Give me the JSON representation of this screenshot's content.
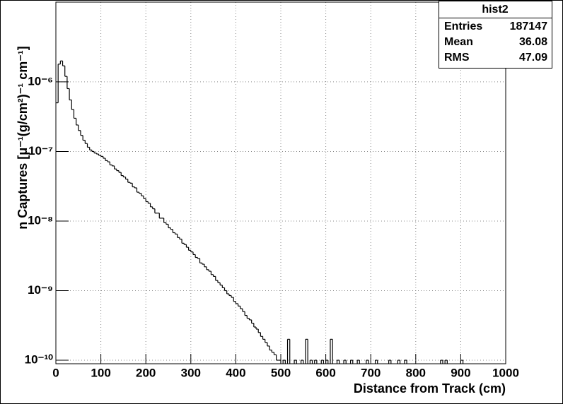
{
  "chart_data": {
    "type": "histogram",
    "xlabel": "Distance from Track (cm)",
    "ylabel": "n Captures [μ⁻¹(g/cm²)⁻¹ cm⁻¹]",
    "log_y": true,
    "grid": true,
    "color": "#000000",
    "xlim": [
      0,
      1000
    ],
    "xticks": [
      0,
      100,
      200,
      300,
      400,
      500,
      600,
      700,
      800,
      900,
      1000
    ],
    "ylim": [
      8.9e-11,
      1.4e-05
    ],
    "yticks": [
      {
        "value": 1e-10,
        "label": "10⁻¹⁰"
      },
      {
        "value": 1e-09,
        "label": "10⁻⁹"
      },
      {
        "value": 1e-08,
        "label": "10⁻⁸"
      },
      {
        "value": 1e-07,
        "label": "10⁻⁷"
      },
      {
        "value": 1e-06,
        "label": "10⁻⁶"
      }
    ],
    "bins": [
      0,
      5,
      10,
      15,
      20,
      25,
      30,
      35,
      40,
      45,
      50,
      55,
      60,
      65,
      70,
      75,
      80,
      85,
      90,
      95,
      100,
      105,
      110,
      115,
      120,
      125,
      130,
      135,
      140,
      145,
      150,
      155,
      160,
      165,
      170,
      175,
      180,
      185,
      190,
      195,
      200,
      205,
      210,
      215,
      220,
      225,
      230,
      235,
      240,
      245,
      250,
      255,
      260,
      265,
      270,
      275,
      280,
      285,
      290,
      295,
      300,
      305,
      310,
      315,
      320,
      325,
      330,
      335,
      340,
      345,
      350,
      355,
      360,
      365,
      370,
      375,
      380,
      385,
      390,
      395,
      400,
      405,
      410,
      415,
      420,
      425,
      430,
      435,
      440,
      445,
      450,
      455,
      460,
      465,
      470,
      475,
      480,
      485,
      490,
      495,
      500,
      505,
      510,
      515,
      520,
      525,
      530,
      535,
      540,
      545,
      550,
      555,
      560,
      565,
      570,
      575,
      580,
      585,
      590,
      595,
      600,
      605,
      610,
      615,
      620,
      625,
      630,
      635,
      640,
      645,
      650,
      655,
      660,
      665,
      670,
      675,
      680,
      685,
      690,
      695,
      700,
      705,
      710,
      715,
      720,
      725,
      730,
      735,
      740,
      745,
      750,
      755,
      760,
      765,
      770,
      775,
      780,
      785,
      790,
      795,
      800,
      805,
      810,
      815,
      820,
      825,
      830,
      835,
      840,
      845,
      850,
      855,
      860,
      865,
      870,
      875,
      880,
      885,
      890,
      895,
      900,
      905,
      910,
      915,
      920,
      925,
      930,
      935,
      940,
      945,
      950,
      955,
      960,
      965,
      970,
      975,
      980,
      985,
      990,
      995,
      1000
    ],
    "values": [
      5e-07,
      1.8e-06,
      2e-06,
      1.7e-06,
      1.2e-06,
      8e-07,
      5.5e-07,
      4e-07,
      3e-07,
      2.4e-07,
      2e-07,
      1.7e-07,
      1.45e-07,
      1.3e-07,
      1.15e-07,
      1.05e-07,
      1e-07,
      9.5e-08,
      9.2e-08,
      8.8e-08,
      8.5e-08,
      8e-08,
      7.4e-08,
      7.1e-08,
      6.4e-08,
      6.2e-08,
      5.6e-08,
      5.3e-08,
      5e-08,
      4.5e-08,
      4.3e-08,
      4e-08,
      3.6e-08,
      3.5e-08,
      3.1e-08,
      3e-08,
      2.6e-08,
      2.5e-08,
      2.3e-08,
      2.1e-08,
      1.9e-08,
      1.8e-08,
      1.6e-08,
      1.5e-08,
      1.3e-08,
      1.3e-08,
      1.1e-08,
      1.1e-08,
      9.5e-09,
      9e-09,
      8e-09,
      7.6e-09,
      6.8e-09,
      6.5e-09,
      5.8e-09,
      5.5e-09,
      4.8e-09,
      4.6e-09,
      4.2e-09,
      3.8e-09,
      3.6e-09,
      3.3e-09,
      3e-09,
      2.9e-09,
      2.5e-09,
      2.4e-09,
      2.2e-09,
      2e-09,
      1.9e-09,
      1.7e-09,
      1.6e-09,
      1.4e-09,
      1.3e-09,
      1.2e-09,
      1.1e-09,
      1e-09,
      9e-10,
      8.5e-10,
      8e-10,
      7e-10,
      6.5e-10,
      6e-10,
      5.5e-10,
      5e-10,
      4.4e-10,
      4e-10,
      3.8e-10,
      3.4e-10,
      3e-10,
      2.8e-10,
      2.5e-10,
      2.2e-10,
      2e-10,
      1.8e-10,
      1.6e-10,
      1.4e-10,
      1.3e-10,
      1.2e-10,
      1e-10,
      1e-10,
      null,
      1e-10,
      null,
      2e-10,
      null,
      null,
      1e-10,
      null,
      null,
      1e-10,
      null,
      2e-10,
      null,
      1e-10,
      null,
      1e-10,
      null,
      null,
      1e-10,
      null,
      1e-10,
      null,
      2e-10,
      null,
      null,
      1e-10,
      null,
      null,
      1e-10,
      null,
      null,
      1e-10,
      null,
      null,
      1e-10,
      null,
      null,
      null,
      1e-10,
      null,
      null,
      null,
      1e-10,
      null,
      null,
      null,
      null,
      null,
      1e-10,
      null,
      null,
      null,
      1e-10,
      null,
      null,
      1e-10,
      null,
      null,
      null,
      null,
      null,
      null,
      null,
      null,
      null,
      null,
      null,
      null,
      null,
      null,
      null,
      1e-10,
      null,
      1e-10,
      null,
      null,
      null,
      null,
      null,
      null,
      1e-10,
      null,
      null,
      null,
      null,
      null,
      null,
      null,
      null,
      null,
      null,
      null,
      null,
      null,
      null,
      null,
      null,
      null,
      null,
      null
    ],
    "stats": {
      "title": "hist2",
      "rows": [
        [
          "Entries",
          187147
        ],
        [
          "Mean",
          36.08
        ],
        [
          "RMS",
          47.09
        ]
      ]
    }
  }
}
